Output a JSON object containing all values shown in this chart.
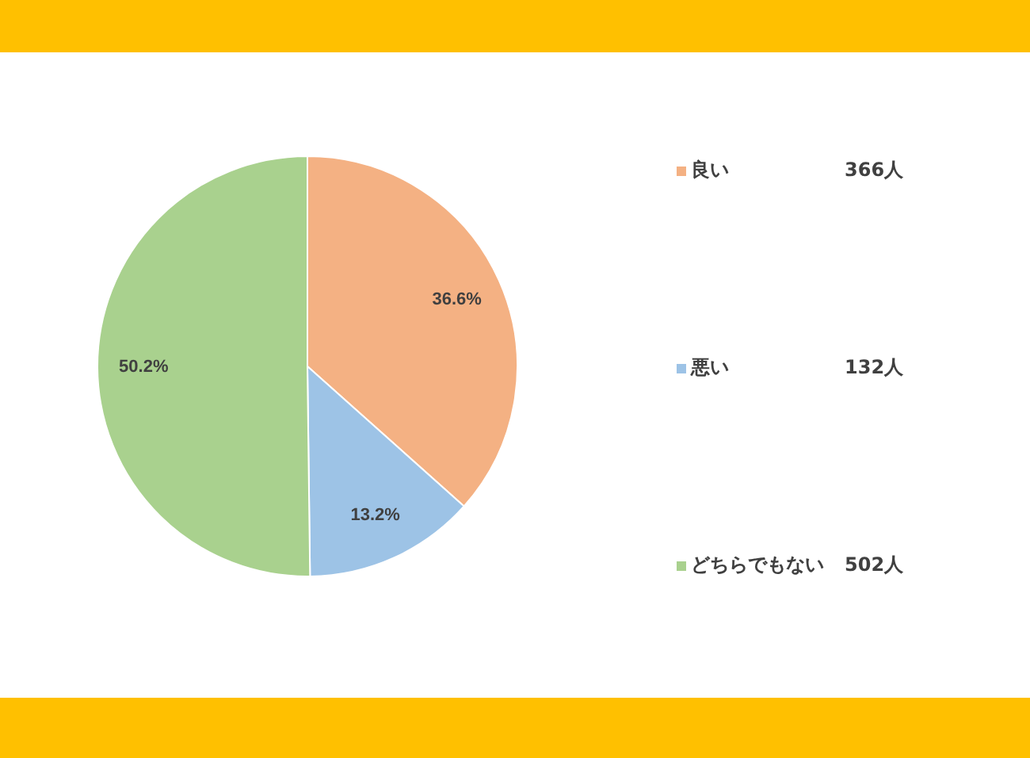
{
  "chart_data": {
    "type": "pie",
    "categories": [
      "良い",
      "悪い",
      "どちらでもない"
    ],
    "values": [
      36.6,
      13.2,
      50.2
    ],
    "colors": [
      "#f4b183",
      "#9dc3e6",
      "#a9d18e"
    ],
    "value_labels": [
      "36.6%",
      "13.2%",
      "50.2%"
    ],
    "annotations": [
      "366人",
      "132人",
      "502人"
    ],
    "legend": "right"
  }
}
